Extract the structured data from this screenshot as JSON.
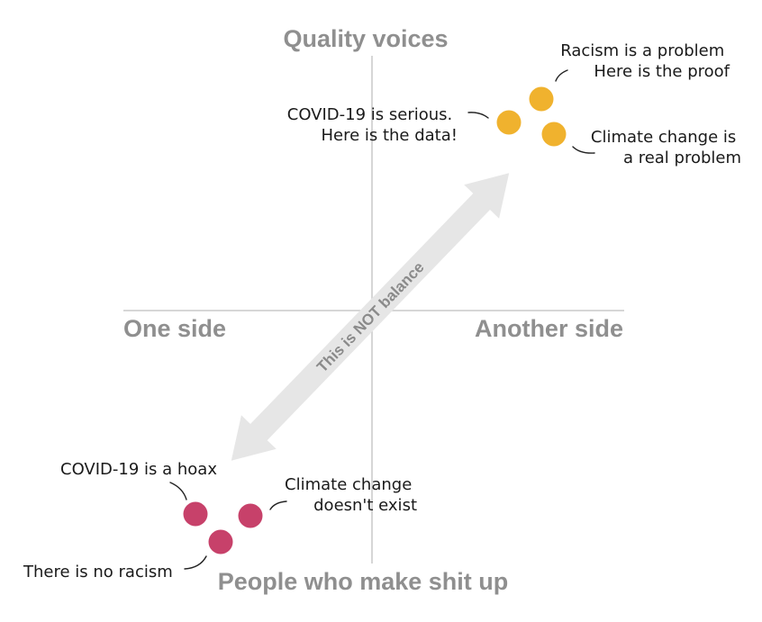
{
  "axes": {
    "top": "Quality voices",
    "bottom": "People who make shit up",
    "left": "One side",
    "right": "Another side"
  },
  "arrow_label": "This is NOT balance",
  "quality_points": [
    {
      "line1": "Racism is a problem",
      "line2": "Here is the proof"
    },
    {
      "line1": "COVID-19 is serious.",
      "line2": "Here is the data!"
    },
    {
      "line1": "Climate change is",
      "line2": "a real problem"
    }
  ],
  "madeup_points": [
    {
      "line1": "COVID-19 is a hoax"
    },
    {
      "line1": "Climate change",
      "line2": "doesn't exist"
    },
    {
      "line1": "There is no racism"
    }
  ],
  "colors": {
    "quality": "#F0B22E",
    "madeup": "#C7416A",
    "axis_line": "#c9c9c9",
    "arrow": "#e6e6e6"
  }
}
